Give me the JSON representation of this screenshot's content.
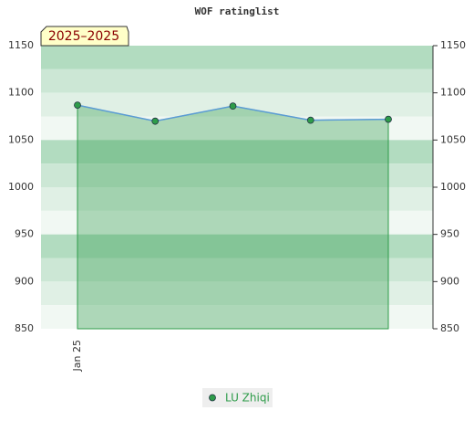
{
  "chart_data": {
    "type": "area",
    "title": "WOF ratinglist",
    "badge": "2025–2025",
    "categories": [
      "Jan 25",
      null,
      null,
      null,
      null
    ],
    "series": [
      {
        "name": "LU Zhiqi",
        "color": "#2e9c4a",
        "line_color": "#5b9bd5",
        "values": [
          1087,
          1070,
          1086,
          1071,
          1072
        ]
      }
    ],
    "ylim": [
      850,
      1150
    ],
    "yticks": [
      850,
      900,
      950,
      1000,
      1050,
      1100,
      1150
    ],
    "band_colors": [
      "#b2dcc0",
      "#cce7d5",
      "#e0f0e5",
      "#f1f8f3"
    ]
  }
}
